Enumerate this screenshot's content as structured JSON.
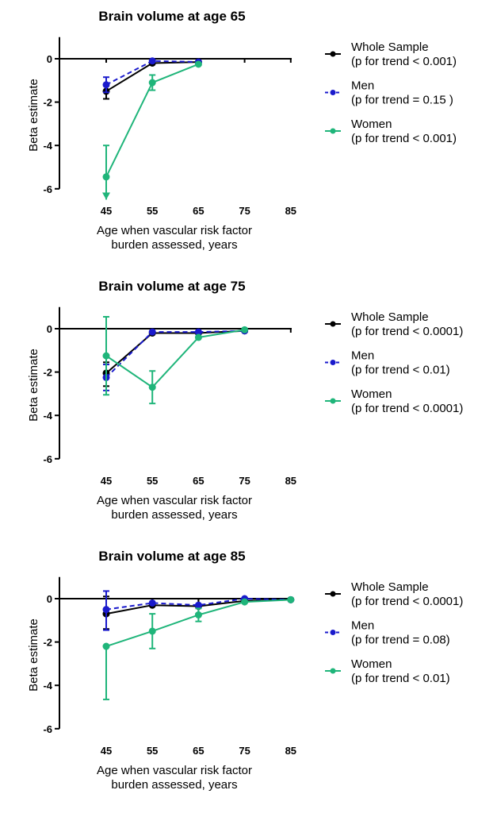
{
  "chart_data": [
    {
      "type": "line",
      "title": "Brain volume at age 65",
      "xlabel": [
        "Age when vascular risk factor",
        "burden assessed, years"
      ],
      "ylabel": "Beta estimate",
      "x": [
        45,
        55,
        65,
        75,
        85
      ],
      "xticks": [
        "45",
        "55",
        "65",
        "75",
        "85"
      ],
      "yticks": [
        "0",
        "-2",
        "-4",
        "-6"
      ],
      "ylim": [
        -6,
        1
      ],
      "series": [
        {
          "name": "Whole Sample",
          "trend": "(p for trend < 0.001)",
          "color": "#000000",
          "dashed": false,
          "values": [
            -1.5,
            -0.2,
            -0.15,
            null,
            null
          ],
          "lower": [
            -1.85,
            null,
            null,
            null,
            null
          ],
          "upper": [
            -1.2,
            null,
            null,
            null,
            null
          ]
        },
        {
          "name": "Men",
          "trend": "(p for trend = 0.15 )",
          "color": "#1a1acc",
          "dashed": true,
          "values": [
            -1.2,
            -0.1,
            -0.15,
            null,
            null
          ],
          "lower": [
            -1.55,
            null,
            null,
            null,
            null
          ],
          "upper": [
            -0.85,
            null,
            null,
            null,
            null
          ]
        },
        {
          "name": "Women",
          "trend": "(p for trend < 0.001)",
          "color": "#1fb57a",
          "dashed": false,
          "values": [
            -5.45,
            -1.1,
            -0.25,
            null,
            null
          ],
          "lower": [
            -6.5,
            -1.45,
            null,
            null,
            null
          ],
          "upper": [
            -4.0,
            -0.75,
            null,
            null,
            null
          ],
          "lower_arrow": [
            true,
            false,
            false,
            false,
            false
          ]
        }
      ]
    },
    {
      "type": "line",
      "title": "Brain volume at age 75",
      "xlabel": [
        "Age when vascular risk factor",
        "burden assessed, years"
      ],
      "ylabel": "Beta estimate",
      "x": [
        45,
        55,
        65,
        75,
        85
      ],
      "xticks": [
        "45",
        "55",
        "65",
        "75",
        "85"
      ],
      "yticks": [
        "0",
        "-2",
        "-4",
        "-6"
      ],
      "ylim": [
        -6,
        1
      ],
      "series": [
        {
          "name": "Whole Sample",
          "trend": "(p for trend < 0.0001)",
          "color": "#000000",
          "dashed": false,
          "values": [
            -2.05,
            -0.2,
            -0.2,
            -0.1,
            null
          ],
          "lower": [
            -2.65,
            null,
            null,
            null,
            null
          ],
          "upper": [
            -1.55,
            null,
            null,
            null,
            null
          ]
        },
        {
          "name": "Men",
          "trend": "(p for trend < 0.01)",
          "color": "#1a1acc",
          "dashed": true,
          "values": [
            -2.25,
            -0.15,
            -0.15,
            -0.1,
            null
          ],
          "lower": [
            -2.85,
            null,
            null,
            null,
            null
          ],
          "upper": [
            -1.65,
            null,
            null,
            null,
            null
          ]
        },
        {
          "name": "Women",
          "trend": "(p for trend < 0.0001)",
          "color": "#1fb57a",
          "dashed": false,
          "values": [
            -1.25,
            -2.7,
            -0.4,
            -0.05,
            null
          ],
          "lower": [
            -3.05,
            -3.45,
            null,
            null,
            null
          ],
          "upper": [
            0.55,
            -1.95,
            null,
            null,
            null
          ]
        }
      ]
    },
    {
      "type": "line",
      "title": "Brain volume at age 85",
      "xlabel": [
        "Age when vascular risk factor",
        "burden assessed, years"
      ],
      "ylabel": "Beta estimate",
      "x": [
        45,
        55,
        65,
        75,
        85
      ],
      "xticks": [
        "45",
        "55",
        "65",
        "75",
        "85"
      ],
      "yticks": [
        "0",
        "-2",
        "-4",
        "-6"
      ],
      "ylim": [
        -6,
        1
      ],
      "series": [
        {
          "name": "Whole Sample",
          "trend": "(p for trend < 0.0001)",
          "color": "#000000",
          "dashed": false,
          "values": [
            -0.7,
            -0.3,
            -0.35,
            -0.1,
            -0.05
          ],
          "lower": [
            -1.4,
            null,
            -0.7,
            null,
            null
          ],
          "upper": [
            0.1,
            null,
            0.0,
            null,
            null
          ]
        },
        {
          "name": "Men",
          "trend": "(p for trend = 0.08)",
          "color": "#1a1acc",
          "dashed": true,
          "values": [
            -0.5,
            -0.2,
            -0.3,
            0.0,
            -0.05
          ],
          "lower": [
            -1.45,
            null,
            null,
            null,
            null
          ],
          "upper": [
            0.35,
            null,
            null,
            null,
            null
          ]
        },
        {
          "name": "Women",
          "trend": "(p for trend < 0.01)",
          "color": "#1fb57a",
          "dashed": false,
          "values": [
            -2.2,
            -1.5,
            -0.75,
            -0.15,
            -0.05
          ],
          "lower": [
            -4.65,
            -2.3,
            -1.05,
            null,
            null
          ],
          "upper": [
            null,
            -0.7,
            -0.45,
            null,
            null
          ]
        }
      ]
    }
  ]
}
